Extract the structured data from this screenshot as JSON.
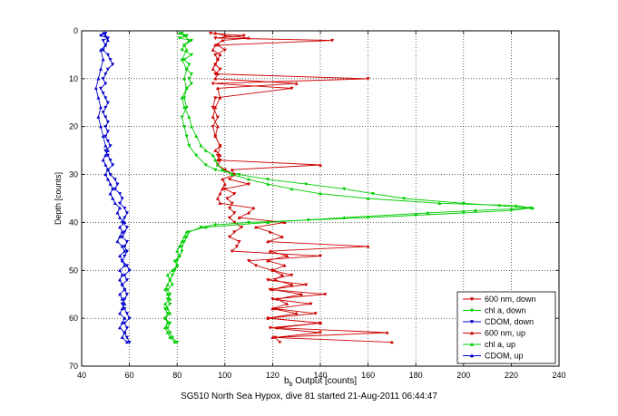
{
  "chart_data": {
    "type": "line",
    "title": "",
    "caption": "SG510 North Sea Hypox, dive 81 started 21-Aug-2011 06:44:47",
    "xlabel": "b_b Output [counts]",
    "xlabel_main": "b",
    "xlabel_sub": "b",
    "xlabel_rest": " Output [counts]",
    "ylabel": "Depth [counts]",
    "xlim": [
      40,
      240
    ],
    "ylim": [
      70,
      0
    ],
    "y_reversed": true,
    "xticks": [
      40,
      60,
      80,
      100,
      120,
      140,
      160,
      180,
      200,
      220,
      240
    ],
    "yticks": [
      0,
      10,
      20,
      30,
      40,
      50,
      60,
      70
    ],
    "grid": true,
    "legend_position": "bottom-right",
    "legend": [
      {
        "label": "600 nm, down",
        "color": "#cc0000",
        "marker": "down-triangle"
      },
      {
        "label": "chl a, down",
        "color": "#00cc00",
        "marker": "down-triangle"
      },
      {
        "label": "CDOM, down",
        "color": "#0000cc",
        "marker": "down-triangle"
      },
      {
        "label": "600 nm, up",
        "color": "#cc0000",
        "marker": "up-triangle"
      },
      {
        "label": "chl a, up",
        "color": "#00cc00",
        "marker": "up-triangle"
      },
      {
        "label": "CDOM, up",
        "color": "#0000cc",
        "marker": "up-triangle"
      }
    ],
    "series": [
      {
        "name": "600 nm, down",
        "color": "#cc0000",
        "marker": "down",
        "depth": [
          0.5,
          1,
          1.5,
          2,
          3,
          4,
          5,
          6,
          7,
          8,
          9,
          10,
          11,
          12,
          14,
          16,
          18,
          20,
          22,
          24,
          26,
          27,
          28,
          29,
          30,
          31,
          32,
          33,
          34,
          35,
          36,
          37,
          38,
          39,
          40,
          41,
          42,
          43,
          44,
          45,
          46,
          47,
          48,
          49,
          50,
          51,
          52,
          53,
          54,
          55,
          56,
          57,
          58,
          59,
          60,
          61,
          62,
          63,
          64,
          65
        ],
        "values": [
          94,
          108,
          96,
          145,
          97,
          100,
          96,
          97,
          96,
          98,
          96,
          160,
          95,
          128,
          96,
          95,
          97,
          95,
          96,
          98,
          97,
          98,
          97,
          100,
          104,
          102,
          110,
          100,
          104,
          101,
          103,
          102,
          104,
          102,
          104,
          107,
          104,
          102,
          106,
          105,
          103,
          140,
          110,
          113,
          120,
          128,
          118,
          134,
          119,
          142,
          120,
          136,
          121,
          138,
          118,
          140,
          119,
          140,
          121,
          123
        ]
      },
      {
        "name": "chl a, down",
        "color": "#00cc00",
        "marker": "down",
        "depth": [
          0.5,
          1,
          1.5,
          2,
          3,
          4,
          5,
          6,
          7,
          8,
          9,
          10,
          11,
          12,
          14,
          16,
          18,
          20,
          22,
          24,
          26,
          28,
          29,
          30,
          31,
          32,
          33,
          34,
          35,
          36,
          36.5,
          37,
          37.5,
          38,
          38.5,
          39,
          39.5,
          40,
          40.5,
          41,
          42,
          43,
          44,
          45,
          46,
          47,
          48,
          49,
          50,
          51,
          52,
          53,
          54,
          55,
          56,
          57,
          58,
          59,
          60,
          61,
          62,
          63,
          64,
          65
        ],
        "values": [
          82,
          84,
          81,
          86,
          83,
          82,
          86,
          83,
          85,
          84,
          86,
          85,
          86,
          84,
          83,
          84,
          82,
          83,
          84,
          85,
          88,
          92,
          96,
          106,
          118,
          134,
          150,
          162,
          175,
          200,
          215,
          228,
          220,
          200,
          180,
          160,
          135,
          110,
          96,
          90,
          85,
          84,
          83,
          82,
          82,
          81,
          80,
          80,
          79,
          78,
          77,
          78,
          76,
          77,
          76,
          77,
          75,
          76,
          75,
          77,
          76,
          77,
          78,
          80
        ]
      },
      {
        "name": "CDOM, down",
        "color": "#0000cc",
        "marker": "down",
        "depth": [
          0.5,
          1,
          1.5,
          2,
          3,
          4,
          5,
          6,
          7,
          8,
          9,
          10,
          11,
          12,
          13,
          14,
          15,
          16,
          17,
          18,
          19,
          20,
          21,
          22,
          23,
          24,
          25,
          26,
          27,
          28,
          29,
          30,
          31,
          32,
          33,
          34,
          35,
          36,
          37,
          38,
          39,
          40,
          41,
          42,
          43,
          44,
          45,
          46,
          47,
          48,
          49,
          50,
          51,
          52,
          53,
          54,
          55,
          56,
          57,
          58,
          59,
          60,
          61,
          62,
          63,
          64,
          65
        ],
        "values": [
          50,
          48,
          51,
          49,
          50,
          49,
          51,
          52,
          53,
          51,
          50,
          49,
          50,
          48,
          49,
          50,
          51,
          50,
          49,
          50,
          51,
          50,
          51,
          50,
          51,
          52,
          50,
          51,
          52,
          53,
          51,
          52,
          54,
          55,
          54,
          56,
          57,
          56,
          58,
          59,
          58,
          57,
          59,
          58,
          57,
          59,
          58,
          59,
          58,
          57,
          59,
          60,
          58,
          59,
          57,
          58,
          59,
          58,
          57,
          58,
          59,
          60,
          58,
          59,
          58,
          59,
          60
        ]
      },
      {
        "name": "600 nm, up",
        "color": "#cc0000",
        "marker": "up",
        "depth": [
          65,
          64,
          63,
          62,
          61,
          60,
          59,
          58,
          57,
          56,
          55,
          54,
          53,
          52,
          51,
          50,
          49,
          48,
          47,
          46,
          45,
          44,
          43,
          42,
          41,
          40,
          39,
          38,
          37,
          36,
          35,
          34,
          33,
          32,
          31,
          30,
          29,
          28,
          27,
          26,
          25,
          24,
          22,
          20,
          18,
          16,
          14,
          12,
          11,
          10,
          9,
          8,
          7,
          6,
          5,
          4,
          3,
          2,
          1.5,
          1,
          0.5
        ],
        "values": [
          170,
          120,
          168,
          122,
          140,
          118,
          130,
          120,
          126,
          122,
          132,
          120,
          128,
          121,
          124,
          120,
          125,
          118,
          126,
          119,
          160,
          118,
          124,
          119,
          113,
          125,
          106,
          110,
          112,
          98,
          97,
          98,
          99,
          100,
          99,
          104,
          103,
          140,
          97,
          98,
          96,
          98,
          96,
          97,
          95,
          96,
          98,
          97,
          130,
          96,
          97,
          95,
          96,
          97,
          98,
          95,
          96,
          99,
          110,
          100,
          96
        ]
      },
      {
        "name": "chl a, up",
        "color": "#00cc00",
        "marker": "up",
        "depth": [
          65,
          64,
          63,
          62,
          61,
          60,
          59,
          58,
          57,
          56,
          55,
          54,
          53,
          52,
          51,
          50,
          49,
          48,
          47,
          46,
          45,
          44,
          43,
          42,
          41,
          40,
          39,
          38,
          37.5,
          37,
          36.5,
          36,
          35,
          34,
          33,
          32,
          31,
          30,
          29,
          28,
          27,
          26,
          25,
          24,
          22,
          20,
          18,
          16,
          14,
          12,
          10,
          8,
          6,
          4,
          3,
          2,
          1,
          0.5
        ],
        "values": [
          79,
          77,
          76,
          75,
          76,
          75,
          77,
          76,
          75,
          77,
          76,
          75,
          76,
          77,
          76,
          78,
          80,
          79,
          81,
          80,
          81,
          82,
          83,
          84,
          92,
          118,
          150,
          185,
          205,
          229,
          222,
          190,
          160,
          140,
          128,
          118,
          110,
          103,
          99,
          97,
          96,
          95,
          92,
          90,
          88,
          86,
          85,
          83,
          82,
          84,
          83,
          84,
          82,
          84,
          83,
          85,
          83,
          81
        ]
      },
      {
        "name": "CDOM, up",
        "color": "#0000cc",
        "marker": "up",
        "depth": [
          65,
          64,
          63,
          62,
          61,
          60,
          59,
          58,
          57,
          56,
          55,
          54,
          53,
          52,
          51,
          50,
          49,
          48,
          47,
          46,
          45,
          44,
          43,
          42,
          41,
          40,
          39,
          38,
          37,
          36,
          35,
          34,
          33,
          32,
          31,
          30,
          29,
          28,
          27,
          26,
          25,
          24,
          22,
          20,
          18,
          16,
          14,
          12,
          10,
          8,
          6,
          4,
          3,
          2,
          1,
          0.5
        ],
        "values": [
          59,
          57,
          58,
          56,
          57,
          58,
          56,
          57,
          58,
          57,
          56,
          58,
          57,
          56,
          57,
          56,
          58,
          57,
          56,
          58,
          57,
          55,
          56,
          57,
          56,
          58,
          56,
          55,
          56,
          54,
          53,
          52,
          53,
          52,
          51,
          50,
          51,
          50,
          49,
          50,
          51,
          50,
          49,
          48,
          47,
          48,
          47,
          46,
          47,
          48,
          49,
          48,
          50,
          51,
          50,
          49
        ]
      }
    ]
  }
}
